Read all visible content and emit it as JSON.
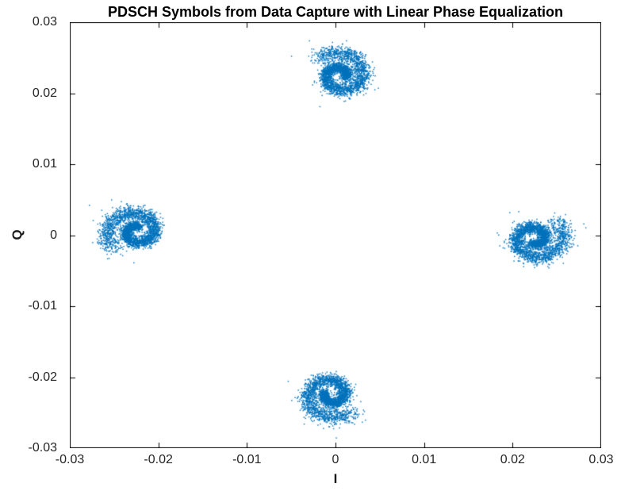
{
  "chart_data": {
    "type": "scatter",
    "title": "PDSCH Symbols from Data Capture with Linear Phase Equalization",
    "xlabel": "I",
    "ylabel": "Q",
    "xlim": [
      -0.03,
      0.03
    ],
    "ylim": [
      -0.03,
      0.03
    ],
    "xticks": [
      -0.03,
      -0.02,
      -0.01,
      0,
      0.01,
      0.02,
      0.03
    ],
    "yticks": [
      -0.03,
      -0.02,
      -0.01,
      0,
      0.01,
      0.02,
      0.03
    ],
    "xtick_labels": [
      "-0.03",
      "-0.02",
      "-0.01",
      "0",
      "0.01",
      "0.02",
      "0.03"
    ],
    "ytick_labels": [
      "-0.03",
      "-0.02",
      "-0.01",
      "0",
      "0.01",
      "0.02",
      "0.03"
    ],
    "marker_color": "#0072BD",
    "axis_color": "#000000",
    "tick_label_color": "#262626",
    "grid": false,
    "legend": "none",
    "description": "QPSK constellation of equalized PDSCH symbols; four spiral/swirl-shaped clusters centered near the four axis points at radius ~0.0225 due to residual phase rotation",
    "clusters": [
      {
        "name": "top",
        "cx": 0.0005,
        "cy": 0.0225,
        "angle_deg": 90
      },
      {
        "name": "left",
        "cx": -0.0225,
        "cy": 0.0005,
        "angle_deg": 180
      },
      {
        "name": "right",
        "cx": 0.0225,
        "cy": -0.0005,
        "angle_deg": 0
      },
      {
        "name": "bottom",
        "cx": -0.0005,
        "cy": -0.0225,
        "angle_deg": 270
      }
    ],
    "spiral": {
      "turns": 1.45,
      "end_angle_local_deg": 45,
      "r_start": 0.0007,
      "r_end": 0.0034,
      "radius_power": 1.25,
      "points_per_cluster": 2800,
      "noise_base": 0.00025,
      "noise_growth": 0.00035,
      "outlier_fraction": 0.04,
      "outlier_scale": 2.6,
      "marker_px": 1.5
    }
  }
}
